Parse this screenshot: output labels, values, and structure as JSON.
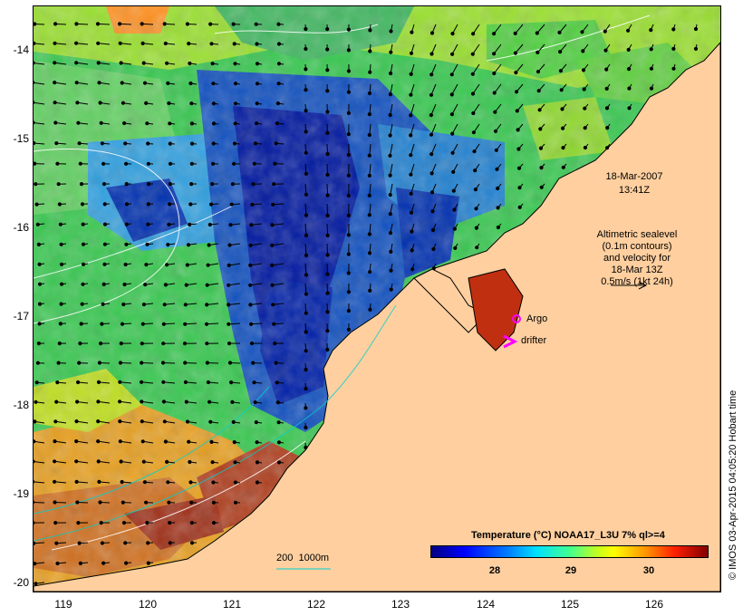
{
  "map": {
    "date_label": "18-Mar-2007",
    "time_label": "13:41Z",
    "altimetry_lines": [
      "Altimetric sealevel",
      "(0.1m contours)",
      "and velocity for",
      "18-Mar 13Z",
      "0.5m/s (1kt 24h)"
    ],
    "argo_label": "Argo",
    "drifter_label": "drifter",
    "depth_contour_label": "200  1000m",
    "colorbar_title": "Temperature (°C) NOAA17_L3U 7% ql>=4",
    "colorbar_ticks": [
      "28",
      "29",
      "30"
    ],
    "credit": "© IMOS 03-Apr-2015 04:05:20 Hobart time",
    "lat_labels": [
      "-14",
      "-15",
      "-16",
      "-17",
      "-18",
      "-19",
      "-20"
    ],
    "lon_labels": [
      "119",
      "120",
      "121",
      "122",
      "123",
      "124",
      "125",
      "126"
    ],
    "colors": {
      "land": "#ffcf9f",
      "argo": "#ff00ff",
      "drifter": "#ff00ff"
    }
  }
}
